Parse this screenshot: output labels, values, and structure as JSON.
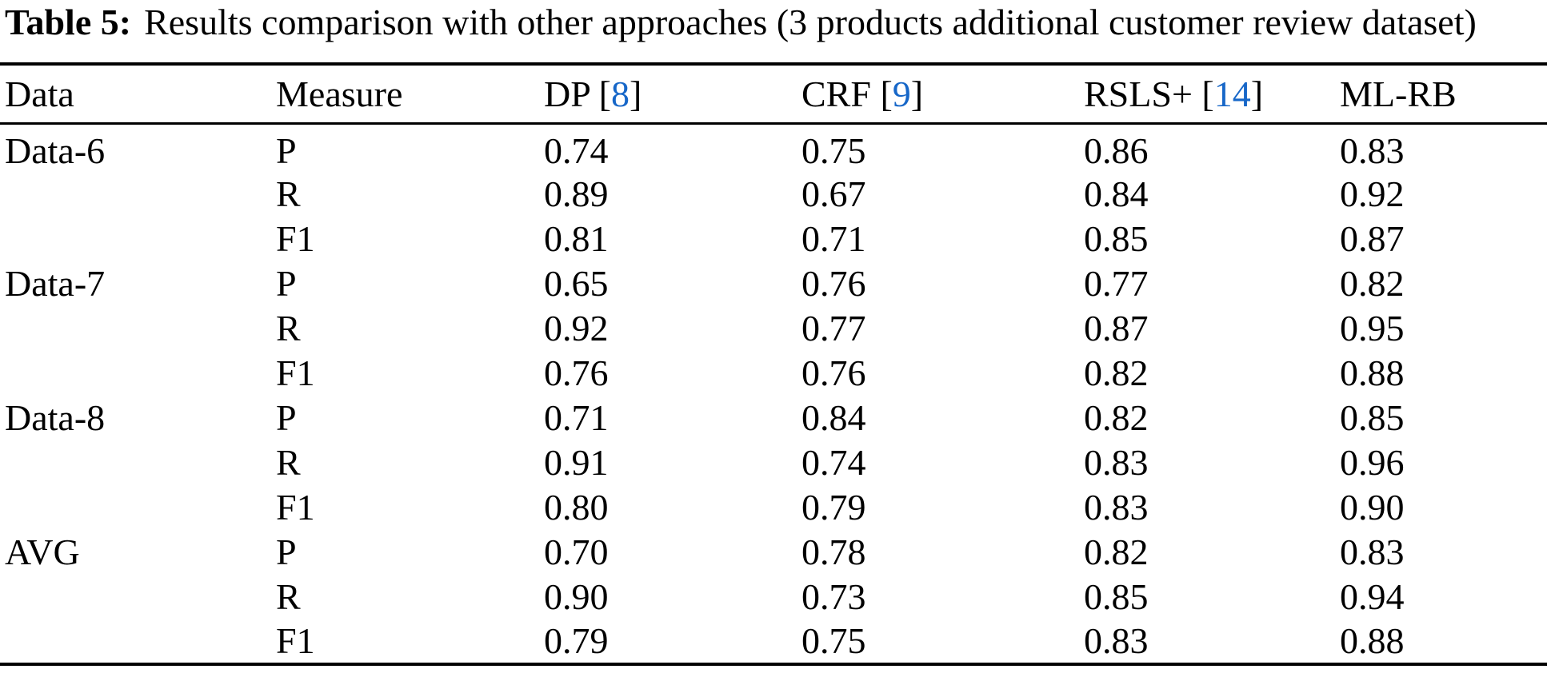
{
  "caption": {
    "tag": "Table 5:",
    "text": "Results comparison with other approaches (3 products additional customer review dataset)"
  },
  "colors": {
    "citation_blue": "#1767c8",
    "text": "#000000",
    "background": "#ffffff"
  },
  "cite_brackets": {
    "open": "[",
    "close": "]"
  },
  "table": {
    "columns": [
      {
        "label": "Data"
      },
      {
        "label": "Measure"
      },
      {
        "label": "DP",
        "cite": "8"
      },
      {
        "label": "CRF",
        "cite": "9"
      },
      {
        "label": "RSLS+",
        "cite": "14"
      },
      {
        "label": "ML-RB"
      }
    ],
    "rows": [
      {
        "dataset": "Data-6",
        "measure": "P",
        "dp": "0.74",
        "crf": "0.75",
        "rsls": "0.86",
        "mlrb": "0.83"
      },
      {
        "dataset": "",
        "measure": "R",
        "dp": "0.89",
        "crf": "0.67",
        "rsls": "0.84",
        "mlrb": "0.92"
      },
      {
        "dataset": "",
        "measure": "F1",
        "dp": "0.81",
        "crf": "0.71",
        "rsls": "0.85",
        "mlrb": "0.87"
      },
      {
        "dataset": "Data-7",
        "measure": "P",
        "dp": "0.65",
        "crf": "0.76",
        "rsls": "0.77",
        "mlrb": "0.82"
      },
      {
        "dataset": "",
        "measure": "R",
        "dp": "0.92",
        "crf": "0.77",
        "rsls": "0.87",
        "mlrb": "0.95"
      },
      {
        "dataset": "",
        "measure": "F1",
        "dp": "0.76",
        "crf": "0.76",
        "rsls": "0.82",
        "mlrb": "0.88"
      },
      {
        "dataset": "Data-8",
        "measure": "P",
        "dp": "0.71",
        "crf": "0.84",
        "rsls": "0.82",
        "mlrb": "0.85"
      },
      {
        "dataset": "",
        "measure": "R",
        "dp": "0.91",
        "crf": "0.74",
        "rsls": "0.83",
        "mlrb": "0.96"
      },
      {
        "dataset": "",
        "measure": "F1",
        "dp": "0.80",
        "crf": "0.79",
        "rsls": "0.83",
        "mlrb": "0.90"
      },
      {
        "dataset": "AVG",
        "measure": "P",
        "dp": "0.70",
        "crf": "0.78",
        "rsls": "0.82",
        "mlrb": "0.83"
      },
      {
        "dataset": "",
        "measure": "R",
        "dp": "0.90",
        "crf": "0.73",
        "rsls": "0.85",
        "mlrb": "0.94"
      },
      {
        "dataset": "",
        "measure": "F1",
        "dp": "0.79",
        "crf": "0.75",
        "rsls": "0.83",
        "mlrb": "0.88"
      }
    ]
  }
}
